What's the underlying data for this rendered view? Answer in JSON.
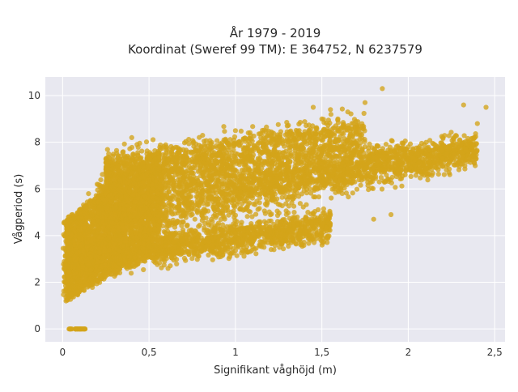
{
  "colors": {
    "marker": "#d4a419",
    "plot_background": "#e8e8f0",
    "grid": "#ffffff"
  },
  "chart_data": {
    "type": "scatter",
    "title": "År 1979 - 2019",
    "subtitle": "Koordinat (Sweref 99 TM): E 364752, N 6237579",
    "xlabel": "Signifikant våghöjd (m)",
    "ylabel": "Vågperiod (s)",
    "xlim": [
      -0.1,
      2.56
    ],
    "ylim": [
      -0.55,
      10.8
    ],
    "xticks": [
      0,
      0.5,
      1,
      1.5,
      2,
      2.5
    ],
    "xtick_labels": [
      "0",
      "0,5",
      "1",
      "1,5",
      "2",
      "2,5"
    ],
    "yticks": [
      0,
      2,
      4,
      6,
      8,
      10
    ],
    "ytick_labels": [
      "0",
      "2",
      "4",
      "6",
      "8",
      "10"
    ],
    "grid": true,
    "legend": "none",
    "description_points": [
      [
        0.05,
        0.0
      ],
      [
        0.08,
        0.0
      ],
      [
        0.1,
        0.0
      ],
      [
        0.12,
        0.0
      ],
      [
        0.02,
        1.2
      ],
      [
        0.05,
        1.5
      ],
      [
        0.1,
        2.0
      ],
      [
        0.2,
        2.5
      ],
      [
        0.3,
        3.0
      ],
      [
        0.5,
        3.5
      ],
      [
        0.7,
        3.8
      ],
      [
        1.0,
        4.1
      ],
      [
        1.2,
        4.3
      ],
      [
        1.5,
        4.4
      ],
      [
        0.05,
        4.0
      ],
      [
        0.1,
        5.0
      ],
      [
        0.15,
        5.8
      ],
      [
        0.2,
        6.2
      ],
      [
        0.3,
        6.5
      ],
      [
        0.5,
        7.0
      ],
      [
        0.6,
        7.8
      ],
      [
        1.0,
        8.5
      ],
      [
        1.3,
        8.7
      ],
      [
        1.5,
        9.0
      ],
      [
        0.4,
        4.5
      ],
      [
        0.6,
        5.0
      ],
      [
        0.8,
        5.5
      ],
      [
        1.0,
        5.8
      ],
      [
        1.2,
        6.2
      ],
      [
        1.4,
        6.5
      ],
      [
        1.6,
        6.8
      ],
      [
        1.8,
        7.3
      ],
      [
        2.0,
        7.8
      ],
      [
        2.2,
        8.2
      ],
      [
        2.4,
        8.8
      ],
      [
        1.45,
        9.5
      ],
      [
        1.55,
        9.4
      ],
      [
        1.65,
        9.3
      ],
      [
        1.75,
        9.7
      ],
      [
        1.85,
        10.3
      ],
      [
        2.32,
        9.6
      ],
      [
        2.45,
        9.5
      ],
      [
        0.4,
        8.2
      ],
      [
        1.8,
        4.7
      ],
      [
        1.9,
        4.9
      ]
    ]
  }
}
